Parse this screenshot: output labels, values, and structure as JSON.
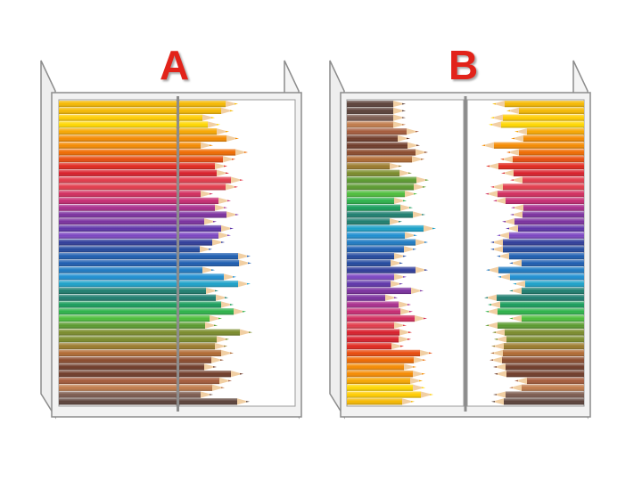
{
  "labels": {
    "a": "A",
    "b": "B"
  },
  "colors": {
    "label": "#e2231a",
    "frame_fill": "#f2f2f2",
    "frame_stroke": "#8c8c8c",
    "panel": "#ffffff"
  },
  "pencil_palette": [
    "#f5b800",
    "#ffcc00",
    "#ffd700",
    "#f7a700",
    "#f58a00",
    "#ef6a00",
    "#e84a0c",
    "#e1261c",
    "#d81e2a",
    "#e23a4a",
    "#d12b5c",
    "#c62a72",
    "#a82c8c",
    "#7a2f9e",
    "#5d33a8",
    "#7b45c2",
    "#2f3c99",
    "#22489e",
    "#1c5cb0",
    "#1e7ac2",
    "#1d8ed1",
    "#1aa0c8",
    "#1d7d6e",
    "#179c5a",
    "#2cb24a",
    "#4cbd3a",
    "#5a9a2e",
    "#7a8b2a",
    "#9a7a2c",
    "#b06a32",
    "#8a4a2c",
    "#6e3a28",
    "#a45a3a",
    "#c07a4a",
    "#7b5a4e",
    "#5a4038"
  ]
}
